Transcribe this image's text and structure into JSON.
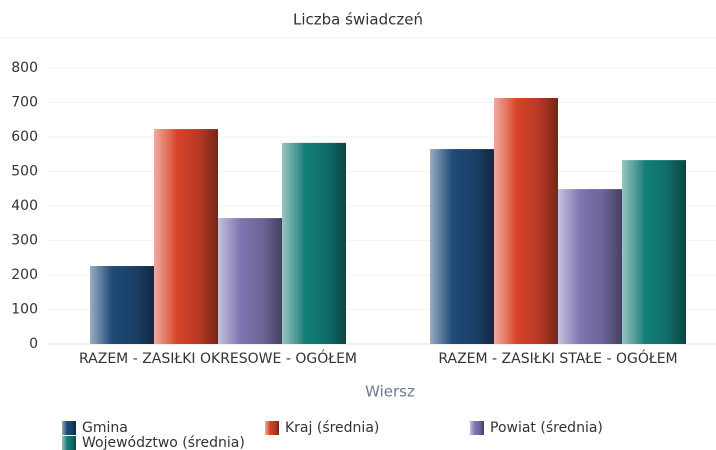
{
  "chart_data": {
    "type": "bar",
    "title": "Liczba świadczeń",
    "x_label": "Wiersz",
    "categories": [
      "RAZEM -  ZASIŁKI OKRESOWE - OGÓŁEM",
      "RAZEM -  ZASIŁKI STAŁE - OGÓŁEM"
    ],
    "series": [
      {
        "name": "Gmina",
        "color": "#1f4a78",
        "values": [
          226,
          565
        ]
      },
      {
        "name": "Kraj (średnia)",
        "color": "#d8432a",
        "values": [
          623,
          713
        ]
      },
      {
        "name": "Powiat (średnia)",
        "color": "#7d76b2",
        "values": [
          365,
          449
        ]
      },
      {
        "name": "Województwo (średnia)",
        "color": "#13807a",
        "values": [
          583,
          533
        ]
      }
    ],
    "ylim": [
      0,
      800
    ],
    "yticks": [
      0,
      100,
      200,
      300,
      400,
      500,
      600,
      700,
      800
    ],
    "grid": true
  }
}
